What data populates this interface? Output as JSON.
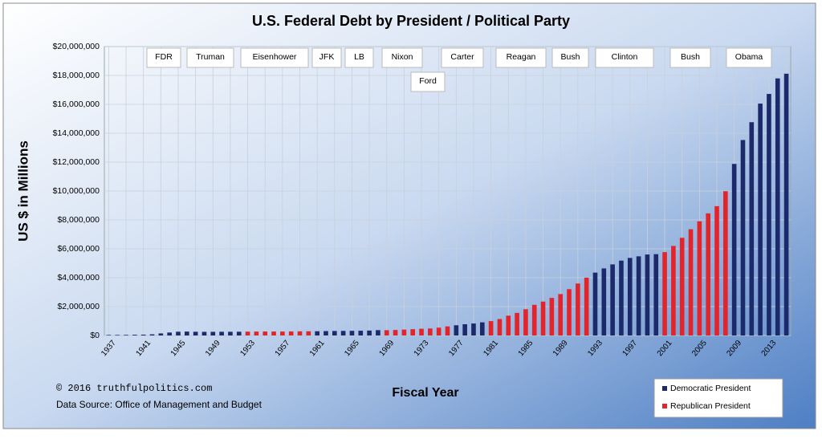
{
  "chart_data": {
    "type": "bar",
    "title": "U.S. Federal Debt by President / Political Party",
    "y_label": "US $ in Millions",
    "x_label": "Fiscal Year",
    "categories": [
      "1937",
      null,
      null,
      null,
      "1941",
      null,
      null,
      null,
      "1945",
      null,
      null,
      null,
      "1949",
      null,
      null,
      null,
      "1953",
      null,
      null,
      null,
      "1957",
      null,
      null,
      null,
      "1961",
      null,
      null,
      null,
      "1965",
      null,
      null,
      null,
      "1969",
      null,
      null,
      null,
      "1973",
      null,
      null,
      null,
      "1977",
      null,
      null,
      null,
      "1981",
      null,
      null,
      null,
      "1985",
      null,
      null,
      null,
      "1989",
      null,
      null,
      null,
      "1993",
      null,
      null,
      null,
      "1997",
      null,
      null,
      null,
      "2001",
      null,
      null,
      null,
      "2005",
      null,
      null,
      null,
      "2009",
      null,
      null,
      null,
      "2013",
      null,
      null
    ],
    "series": [
      {
        "name": "Democratic President",
        "color": "#1c2a6b",
        "values": [
          36425,
          37165,
          40440,
          50696,
          57531,
          79200,
          142648,
          204079,
          260123,
          270991,
          257149,
          252031,
          252610,
          256853,
          255288,
          259097,
          null,
          null,
          null,
          null,
          null,
          null,
          null,
          null,
          292648,
          302928,
          310324,
          316059,
          322318,
          328498,
          340445,
          368685,
          null,
          null,
          null,
          null,
          null,
          null,
          null,
          null,
          706398,
          776602,
          829467,
          909041,
          null,
          null,
          null,
          null,
          null,
          null,
          null,
          null,
          null,
          null,
          null,
          null,
          4351044,
          4643307,
          4920586,
          5181465,
          5369206,
          5478189,
          5605523,
          5628700,
          null,
          null,
          null,
          null,
          null,
          null,
          null,
          null,
          11875851,
          13528807,
          14764222,
          16050921,
          16719434,
          17794483,
          18120000
        ]
      },
      {
        "name": "Republican President",
        "color": "#e3242b",
        "values": [
          null,
          null,
          null,
          null,
          null,
          null,
          null,
          null,
          null,
          null,
          null,
          null,
          null,
          null,
          null,
          null,
          265963,
          270812,
          274366,
          272693,
          272252,
          279666,
          287465,
          290525,
          null,
          null,
          null,
          null,
          null,
          null,
          null,
          null,
          365769,
          380921,
          408176,
          435936,
          466291,
          483893,
          541925,
          628970,
          null,
          null,
          null,
          null,
          994828,
          1137315,
          1371660,
          1564586,
          1817423,
          2120501,
          2345956,
          2601104,
          2867800,
          3206290,
          3598178,
          4001787,
          null,
          null,
          null,
          null,
          null,
          null,
          null,
          null,
          5769881,
          6198401,
          6760014,
          7354657,
          7905300,
          8451350,
          8950744,
          9986082,
          null,
          null,
          null,
          null,
          null,
          null,
          null
        ]
      }
    ],
    "ylim": [
      0,
      20000000
    ],
    "yticks": [
      {
        "value": 0,
        "label": "$0"
      },
      {
        "value": 2000000,
        "label": "$2,000,000"
      },
      {
        "value": 4000000,
        "label": "$4,000,000"
      },
      {
        "value": 6000000,
        "label": "$6,000,000"
      },
      {
        "value": 8000000,
        "label": "$8,000,000"
      },
      {
        "value": 10000000,
        "label": "$10,000,000"
      },
      {
        "value": 12000000,
        "label": "$12,000,000"
      },
      {
        "value": 14000000,
        "label": "$14,000,000"
      },
      {
        "value": 16000000,
        "label": "$16,000,000"
      },
      {
        "value": 18000000,
        "label": "$18,000,000"
      },
      {
        "value": 20000000,
        "label": "$20,000,000"
      }
    ],
    "grid": true,
    "legend": "bottom-right",
    "annotations": {
      "presidents": [
        "FDR",
        "Truman",
        "Eisenhower",
        "JFK",
        "LB",
        "Nixon",
        "Ford",
        "Carter",
        "Reagan",
        "Bush",
        "Clinton",
        "Bush",
        "Obama"
      ],
      "copyright": "© 2016 truthfulpolitics.com",
      "source": "Data Source:  Office of Management and Budget"
    }
  }
}
